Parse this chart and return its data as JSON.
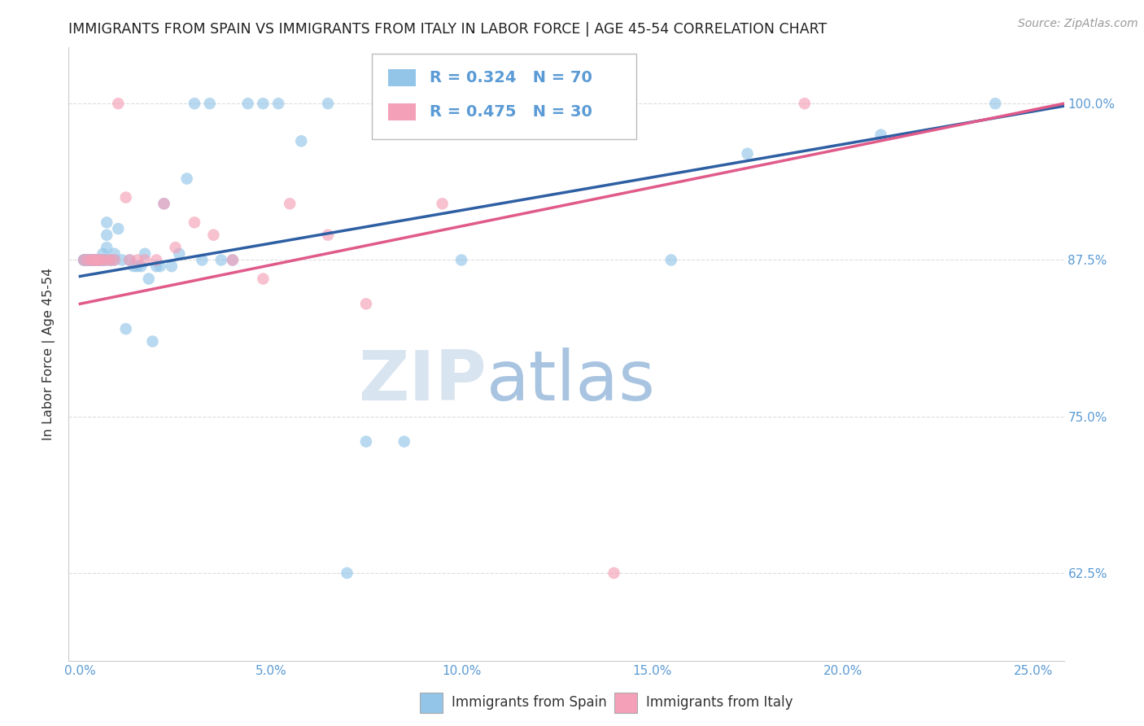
{
  "title": "IMMIGRANTS FROM SPAIN VS IMMIGRANTS FROM ITALY IN LABOR FORCE | AGE 45-54 CORRELATION CHART",
  "source": "Source: ZipAtlas.com",
  "ylabel": "In Labor Force | Age 45-54",
  "x_ticks": [
    "0.0%",
    "5.0%",
    "10.0%",
    "15.0%",
    "20.0%",
    "25.0%"
  ],
  "x_tick_vals": [
    0.0,
    0.05,
    0.1,
    0.15,
    0.2,
    0.25
  ],
  "y_ticks": [
    "62.5%",
    "75.0%",
    "87.5%",
    "100.0%"
  ],
  "y_tick_vals": [
    0.625,
    0.75,
    0.875,
    1.0
  ],
  "xlim": [
    -0.003,
    0.258
  ],
  "ylim": [
    0.555,
    1.045
  ],
  "legend_labels": [
    "Immigrants from Spain",
    "Immigrants from Italy"
  ],
  "R_spain": 0.324,
  "N_spain": 70,
  "R_italy": 0.475,
  "N_italy": 30,
  "color_spain": "#92C5E8",
  "color_italy": "#F4A0B8",
  "line_color_spain": "#2E5FA3",
  "line_color_italy": "#E05A8A",
  "title_color": "#222222",
  "axis_label_color": "#333333",
  "tick_color": "#5B9BD5",
  "watermark_zip": "ZIP",
  "watermark_atlas": "atlas",
  "watermark_zip_color": "#D8E4F0",
  "watermark_atlas_color": "#A8C4E0",
  "grid_color": "#DDDDDD",
  "spine_color": "#CCCCCC",
  "spain_x": [
    0.001,
    0.001,
    0.001,
    0.002,
    0.002,
    0.002,
    0.002,
    0.002,
    0.003,
    0.003,
    0.003,
    0.003,
    0.003,
    0.003,
    0.004,
    0.004,
    0.004,
    0.004,
    0.005,
    0.005,
    0.005,
    0.005,
    0.006,
    0.006,
    0.006,
    0.006,
    0.007,
    0.007,
    0.007,
    0.007,
    0.008,
    0.008,
    0.009,
    0.009,
    0.01,
    0.011,
    0.012,
    0.013,
    0.014,
    0.015,
    0.016,
    0.017,
    0.018,
    0.019,
    0.02,
    0.021,
    0.022,
    0.024,
    0.026,
    0.028,
    0.03,
    0.032,
    0.034,
    0.037,
    0.04,
    0.044,
    0.048,
    0.052,
    0.058,
    0.065,
    0.07,
    0.075,
    0.085,
    0.095,
    0.1,
    0.11,
    0.155,
    0.175,
    0.21,
    0.24
  ],
  "spain_y": [
    0.875,
    0.875,
    0.875,
    0.875,
    0.875,
    0.875,
    0.875,
    0.875,
    0.875,
    0.875,
    0.875,
    0.875,
    0.875,
    0.875,
    0.875,
    0.875,
    0.875,
    0.875,
    0.875,
    0.875,
    0.875,
    0.875,
    0.875,
    0.875,
    0.875,
    0.88,
    0.875,
    0.885,
    0.895,
    0.905,
    0.875,
    0.875,
    0.875,
    0.88,
    0.9,
    0.875,
    0.82,
    0.875,
    0.87,
    0.87,
    0.87,
    0.88,
    0.86,
    0.81,
    0.87,
    0.87,
    0.92,
    0.87,
    0.88,
    0.94,
    1.0,
    0.875,
    1.0,
    0.875,
    0.875,
    1.0,
    1.0,
    1.0,
    0.97,
    1.0,
    0.625,
    0.73,
    0.73,
    1.0,
    0.875,
    1.0,
    0.875,
    0.96,
    0.975,
    1.0
  ],
  "italy_x": [
    0.001,
    0.002,
    0.003,
    0.003,
    0.004,
    0.004,
    0.005,
    0.005,
    0.006,
    0.007,
    0.008,
    0.009,
    0.01,
    0.012,
    0.013,
    0.015,
    0.017,
    0.02,
    0.022,
    0.025,
    0.03,
    0.035,
    0.04,
    0.048,
    0.055,
    0.065,
    0.075,
    0.095,
    0.14,
    0.19
  ],
  "italy_y": [
    0.875,
    0.875,
    0.875,
    0.875,
    0.875,
    0.875,
    0.875,
    0.875,
    0.875,
    0.875,
    0.875,
    0.875,
    1.0,
    0.925,
    0.875,
    0.875,
    0.875,
    0.875,
    0.92,
    0.885,
    0.905,
    0.895,
    0.875,
    0.86,
    0.92,
    0.895,
    0.84,
    0.92,
    0.625,
    1.0
  ],
  "line_spain_x0": 0.0,
  "line_spain_y0": 0.862,
  "line_spain_x1": 0.258,
  "line_spain_y1": 0.998,
  "line_italy_x0": 0.0,
  "line_italy_y0": 0.84,
  "line_italy_x1": 0.258,
  "line_italy_y1": 1.0
}
